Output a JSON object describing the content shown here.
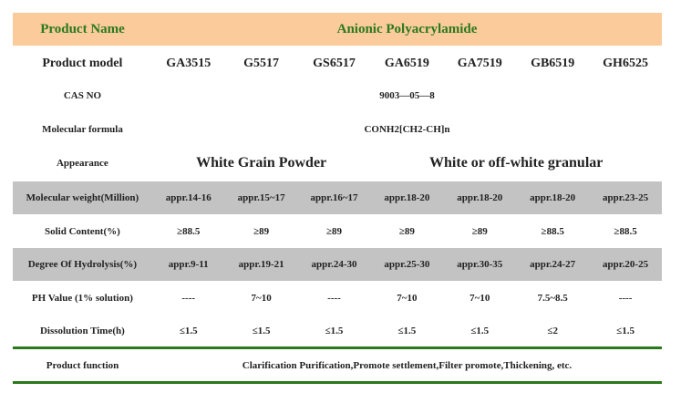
{
  "header": {
    "label": "Product Name",
    "title": "Anionic Polyacrylamide"
  },
  "models": {
    "label": "Product model",
    "items": [
      "GA3515",
      "G5517",
      "GS6517",
      "GA6519",
      "GA7519",
      "GB6519",
      "GH6525"
    ]
  },
  "cas": {
    "label": "CAS NO",
    "value": "9003—05—8"
  },
  "formula": {
    "label": "Molecular formula",
    "value": "CONH2[CH2-CH]n"
  },
  "appearance": {
    "label": "Appearance",
    "value_a": "White Grain Powder",
    "value_b": "White or off-white granular"
  },
  "molecular_weight": {
    "label": "Molecular weight(Million)",
    "values": [
      "appr.14-16",
      "appr.15~17",
      "appr.16~17",
      "appr.18-20",
      "appr.18-20",
      "appr.18-20",
      "appr.23-25"
    ]
  },
  "solid_content": {
    "label": "Solid Content(%)",
    "values": [
      "≥88.5",
      "≥89",
      "≥89",
      "≥89",
      "≥89",
      "≥88.5",
      "≥88.5"
    ]
  },
  "hydrolysis": {
    "label": "Degree Of  Hydrolysis(%)",
    "values": [
      "appr.9-11",
      "appr.19-21",
      "appr.24-30",
      "appr.25-30",
      "appr.30-35",
      "appr.24-27",
      "appr.20-25"
    ]
  },
  "ph": {
    "label": "PH Value (1% solution)",
    "values": [
      "----",
      "7~10",
      "----",
      "7~10",
      "7~10",
      "7.5~8.5",
      "----"
    ]
  },
  "dissolution": {
    "label": "Dissolution Time(h)",
    "values": [
      "≤1.5",
      "≤1.5",
      "≤1.5",
      "≤1.5",
      "≤1.5",
      "≤2",
      "≤1.5"
    ]
  },
  "function": {
    "label": "Product function",
    "value": "Clarification Purification,Promote settlement,Filter promote,Thickening, etc."
  },
  "colors": {
    "header_bg": "#fbcb9b",
    "header_text": "#2a7a1c",
    "shaded_row": "#c3c3c3",
    "rule": "#2a7a1c"
  }
}
